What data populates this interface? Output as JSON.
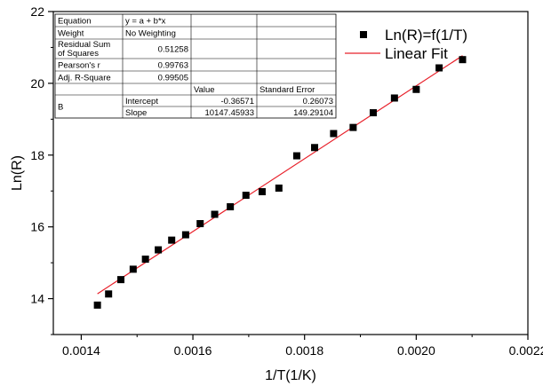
{
  "chart_data": {
    "type": "scatter",
    "xlabel": "1/T(1/K)",
    "ylabel": "Ln(R)",
    "xlim": [
      0.00135,
      0.0022
    ],
    "ylim": [
      13,
      22
    ],
    "x_ticks": [
      "0.0014",
      "0.0016",
      "0.0018",
      "0.0020",
      "0.0022"
    ],
    "y_ticks": [
      "14",
      "16",
      "18",
      "20",
      "22"
    ],
    "grid": false,
    "legend_position": "top-right",
    "legend": [
      {
        "label": "Ln(R)=f(1/T)",
        "marker": "square",
        "color": "#000000"
      },
      {
        "label": "Linear Fit",
        "marker": "line",
        "color": "#e8202a"
      }
    ],
    "series": [
      {
        "name": "Ln(R)=f(1/T)",
        "color": "#000000",
        "x": [
          0.001429,
          0.001449,
          0.001471,
          0.001493,
          0.001515,
          0.001538,
          0.001562,
          0.001587,
          0.001613,
          0.001639,
          0.001667,
          0.001695,
          0.001724,
          0.001754,
          0.001786,
          0.001818,
          0.001852,
          0.001887,
          0.001923,
          0.001961,
          0.002,
          0.002041,
          0.002083
        ],
        "y": [
          13.82,
          14.13,
          14.53,
          14.82,
          15.1,
          15.36,
          15.63,
          15.78,
          16.09,
          16.35,
          16.56,
          16.88,
          16.98,
          17.08,
          17.98,
          18.21,
          18.6,
          18.77,
          19.18,
          19.59,
          19.83,
          20.43,
          20.66
        ]
      }
    ],
    "fit": {
      "name": "Linear Fit",
      "color": "#e8202a",
      "intercept": -0.36571,
      "slope": 10147.45933,
      "x_range": [
        0.001429,
        0.002083
      ]
    },
    "stats_table": {
      "rows": [
        [
          "Equation",
          "y = a + b*x",
          "",
          ""
        ],
        [
          "Weight",
          "No Weighting",
          "",
          ""
        ],
        [
          "Residual Sum of Squares",
          "0.51258",
          "",
          ""
        ],
        [
          "Pearson's r",
          "0.99763",
          "",
          ""
        ],
        [
          "Adj. R-Square",
          "0.99505",
          "",
          ""
        ]
      ],
      "header": [
        "",
        "",
        "Value",
        "Standard Error"
      ],
      "b_label": "B",
      "b_rows": [
        [
          "Intercept",
          "-0.36571",
          "0.26073"
        ],
        [
          "Slope",
          "10147.45933",
          "149.29104"
        ]
      ]
    }
  }
}
